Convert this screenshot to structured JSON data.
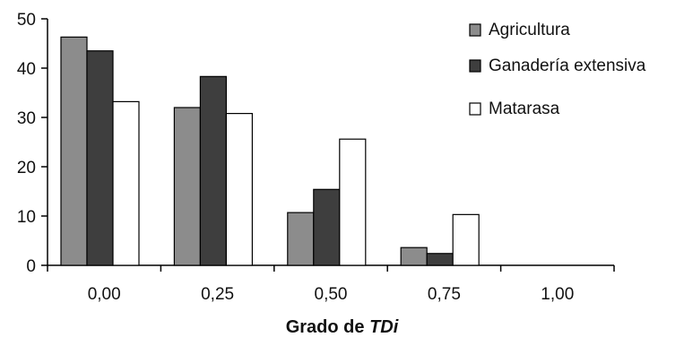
{
  "chart_data": {
    "type": "bar",
    "categories": [
      "0,00",
      "0,25",
      "0,50",
      "0,75",
      "1,00"
    ],
    "series": [
      {
        "name": "Agricultura",
        "values": [
          46.3,
          32.0,
          10.7,
          3.6,
          0
        ],
        "color": "#8c8c8c"
      },
      {
        "name": "Ganadería extensiva",
        "values": [
          43.5,
          38.3,
          15.4,
          2.4,
          0
        ],
        "color": "#3e3e3e"
      },
      {
        "name": "Matarasa",
        "values": [
          33.2,
          30.8,
          25.6,
          10.3,
          0
        ],
        "color": "#ffffff"
      }
    ],
    "xlabel_prefix": "Grado de ",
    "xlabel_emph": "TDi",
    "ylabel": "",
    "ylim": [
      0,
      50
    ],
    "yticks": [
      0,
      10,
      20,
      30,
      40,
      50
    ],
    "grid": false,
    "legend_position": "top-right"
  }
}
